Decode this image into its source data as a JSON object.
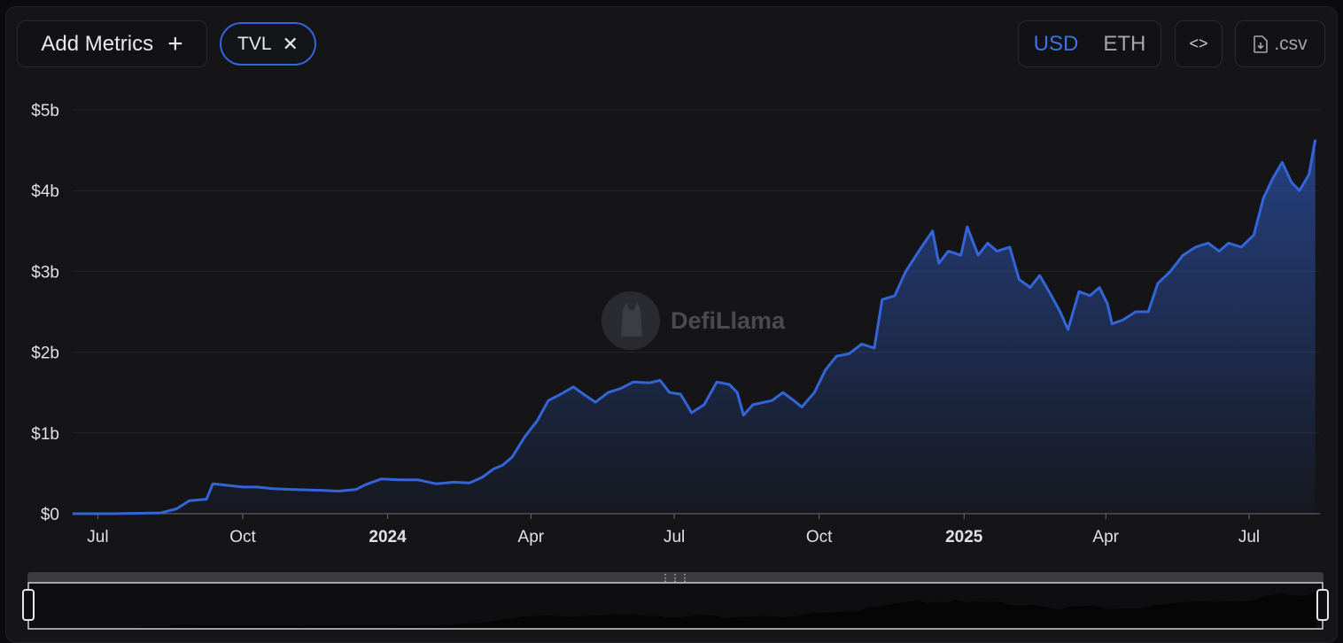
{
  "toolbar": {
    "add_metrics_label": "Add Metrics",
    "active_metric": "TVL",
    "denominations": [
      "USD",
      "ETH"
    ],
    "selected_denomination": "USD",
    "embed_icon": "code-brackets-icon",
    "csv_label": ".csv"
  },
  "watermark": {
    "text": "DefiLlama"
  },
  "colors": {
    "line": "#3365d8",
    "background": "#151518",
    "accent": "#2f66db"
  },
  "chart_data": {
    "type": "area",
    "title": "",
    "xlabel": "",
    "ylabel": "",
    "y_unit": "USD (billions)",
    "ylim": [
      0,
      5
    ],
    "y_ticks": [
      {
        "v": 0,
        "label": "$0"
      },
      {
        "v": 1,
        "label": "$1b"
      },
      {
        "v": 2,
        "label": "$2b"
      },
      {
        "v": 3,
        "label": "$3b"
      },
      {
        "v": 4,
        "label": "$4b"
      },
      {
        "v": 5,
        "label": "$5b"
      }
    ],
    "x_range": [
      "2023-06-15",
      "2025-08-15"
    ],
    "x_ticks": [
      {
        "date": "2023-07-01",
        "label": "Jul",
        "bold": false
      },
      {
        "date": "2023-10-01",
        "label": "Oct",
        "bold": false
      },
      {
        "date": "2024-01-01",
        "label": "2024",
        "bold": true
      },
      {
        "date": "2024-04-01",
        "label": "Apr",
        "bold": false
      },
      {
        "date": "2024-07-01",
        "label": "Jul",
        "bold": false
      },
      {
        "date": "2024-10-01",
        "label": "Oct",
        "bold": false
      },
      {
        "date": "2025-01-01",
        "label": "2025",
        "bold": true
      },
      {
        "date": "2025-04-01",
        "label": "Apr",
        "bold": false
      },
      {
        "date": "2025-07-01",
        "label": "Jul",
        "bold": false
      }
    ],
    "grid": true,
    "legend": "none",
    "series": [
      {
        "name": "TVL",
        "points": [
          [
            "2023-06-15",
            0.0
          ],
          [
            "2023-07-10",
            0.0
          ],
          [
            "2023-08-10",
            0.01
          ],
          [
            "2023-08-20",
            0.06
          ],
          [
            "2023-08-28",
            0.16
          ],
          [
            "2023-09-08",
            0.18
          ],
          [
            "2023-09-12",
            0.37
          ],
          [
            "2023-09-22",
            0.35
          ],
          [
            "2023-10-01",
            0.33
          ],
          [
            "2023-10-10",
            0.33
          ],
          [
            "2023-10-20",
            0.31
          ],
          [
            "2023-11-01",
            0.3
          ],
          [
            "2023-11-20",
            0.29
          ],
          [
            "2023-12-01",
            0.28
          ],
          [
            "2023-12-12",
            0.3
          ],
          [
            "2023-12-18",
            0.36
          ],
          [
            "2023-12-28",
            0.43
          ],
          [
            "2024-01-08",
            0.42
          ],
          [
            "2024-01-20",
            0.42
          ],
          [
            "2024-02-01",
            0.37
          ],
          [
            "2024-02-12",
            0.39
          ],
          [
            "2024-02-22",
            0.38
          ],
          [
            "2024-03-01",
            0.45
          ],
          [
            "2024-03-08",
            0.55
          ],
          [
            "2024-03-14",
            0.6
          ],
          [
            "2024-03-20",
            0.7
          ],
          [
            "2024-03-28",
            0.95
          ],
          [
            "2024-04-05",
            1.15
          ],
          [
            "2024-04-12",
            1.4
          ],
          [
            "2024-04-20",
            1.48
          ],
          [
            "2024-04-28",
            1.57
          ],
          [
            "2024-05-05",
            1.47
          ],
          [
            "2024-05-12",
            1.38
          ],
          [
            "2024-05-20",
            1.5
          ],
          [
            "2024-05-28",
            1.55
          ],
          [
            "2024-06-05",
            1.63
          ],
          [
            "2024-06-15",
            1.62
          ],
          [
            "2024-06-22",
            1.65
          ],
          [
            "2024-06-28",
            1.5
          ],
          [
            "2024-07-05",
            1.48
          ],
          [
            "2024-07-12",
            1.25
          ],
          [
            "2024-07-20",
            1.35
          ],
          [
            "2024-07-28",
            1.63
          ],
          [
            "2024-08-05",
            1.6
          ],
          [
            "2024-08-10",
            1.5
          ],
          [
            "2024-08-14",
            1.22
          ],
          [
            "2024-08-20",
            1.35
          ],
          [
            "2024-09-01",
            1.4
          ],
          [
            "2024-09-08",
            1.5
          ],
          [
            "2024-09-15",
            1.4
          ],
          [
            "2024-09-20",
            1.32
          ],
          [
            "2024-09-28",
            1.5
          ],
          [
            "2024-10-05",
            1.78
          ],
          [
            "2024-10-12",
            1.95
          ],
          [
            "2024-10-20",
            1.98
          ],
          [
            "2024-10-28",
            2.1
          ],
          [
            "2024-11-05",
            2.05
          ],
          [
            "2024-11-10",
            2.65
          ],
          [
            "2024-11-18",
            2.7
          ],
          [
            "2024-11-25",
            3.0
          ],
          [
            "2024-12-05",
            3.3
          ],
          [
            "2024-12-12",
            3.5
          ],
          [
            "2024-12-16",
            3.1
          ],
          [
            "2024-12-22",
            3.25
          ],
          [
            "2024-12-30",
            3.2
          ],
          [
            "2025-01-03",
            3.55
          ],
          [
            "2025-01-10",
            3.2
          ],
          [
            "2025-01-16",
            3.35
          ],
          [
            "2025-01-22",
            3.25
          ],
          [
            "2025-01-30",
            3.3
          ],
          [
            "2025-02-05",
            2.9
          ],
          [
            "2025-02-12",
            2.8
          ],
          [
            "2025-02-18",
            2.95
          ],
          [
            "2025-02-24",
            2.75
          ],
          [
            "2025-03-03",
            2.5
          ],
          [
            "2025-03-08",
            2.28
          ],
          [
            "2025-03-15",
            2.75
          ],
          [
            "2025-03-22",
            2.7
          ],
          [
            "2025-03-28",
            2.8
          ],
          [
            "2025-04-02",
            2.6
          ],
          [
            "2025-04-05",
            2.35
          ],
          [
            "2025-04-12",
            2.4
          ],
          [
            "2025-04-20",
            2.5
          ],
          [
            "2025-04-28",
            2.5
          ],
          [
            "2025-05-04",
            2.85
          ],
          [
            "2025-05-12",
            3.0
          ],
          [
            "2025-05-20",
            3.2
          ],
          [
            "2025-05-28",
            3.3
          ],
          [
            "2025-06-05",
            3.35
          ],
          [
            "2025-06-12",
            3.25
          ],
          [
            "2025-06-18",
            3.35
          ],
          [
            "2025-06-26",
            3.3
          ],
          [
            "2025-07-04",
            3.45
          ],
          [
            "2025-07-10",
            3.9
          ],
          [
            "2025-07-16",
            4.15
          ],
          [
            "2025-07-22",
            4.35
          ],
          [
            "2025-07-28",
            4.1
          ],
          [
            "2025-08-02",
            4.0
          ],
          [
            "2025-08-08",
            4.2
          ],
          [
            "2025-08-12",
            4.63
          ]
        ]
      }
    ]
  }
}
